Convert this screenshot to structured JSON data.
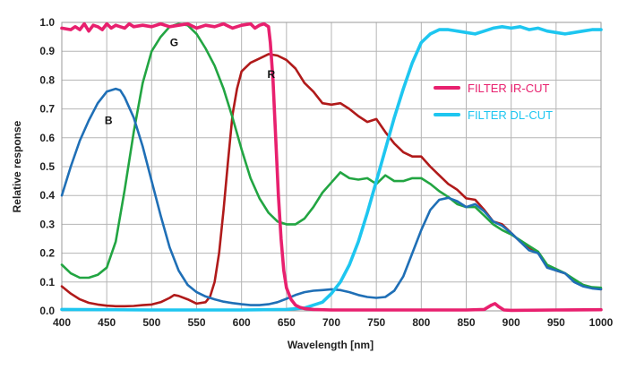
{
  "chart_data": {
    "type": "line",
    "xlabel": "Wavelength [nm]",
    "ylabel": "Relative response",
    "xlim": [
      400,
      1000
    ],
    "ylim": [
      0,
      1.0
    ],
    "x_ticks": [
      "400",
      "450",
      "500",
      "550",
      "600",
      "650",
      "700",
      "750",
      "800",
      "850",
      "900",
      "950",
      "1000"
    ],
    "y_ticks": [
      "0.0",
      "0.1",
      "0.2",
      "0.3",
      "0.4",
      "0.5",
      "0.6",
      "0.7",
      "0.8",
      "0.9",
      "1.0"
    ],
    "grid": true,
    "legend_position": "top-right",
    "series": [
      {
        "name": "FILTER IR-CUT",
        "color": "#e8206e",
        "legend": true,
        "points": [
          [
            400,
            0.98
          ],
          [
            410,
            0.975
          ],
          [
            415,
            0.985
          ],
          [
            420,
            0.975
          ],
          [
            425,
            0.995
          ],
          [
            430,
            0.97
          ],
          [
            435,
            0.99
          ],
          [
            440,
            0.985
          ],
          [
            445,
            0.975
          ],
          [
            450,
            0.995
          ],
          [
            455,
            0.98
          ],
          [
            460,
            0.99
          ],
          [
            465,
            0.985
          ],
          [
            470,
            0.98
          ],
          [
            475,
            0.995
          ],
          [
            480,
            0.985
          ],
          [
            490,
            0.99
          ],
          [
            500,
            0.985
          ],
          [
            510,
            0.995
          ],
          [
            520,
            0.985
          ],
          [
            530,
            0.99
          ],
          [
            540,
            0.995
          ],
          [
            550,
            0.98
          ],
          [
            560,
            0.99
          ],
          [
            570,
            0.985
          ],
          [
            580,
            0.995
          ],
          [
            590,
            0.98
          ],
          [
            600,
            0.99
          ],
          [
            610,
            0.995
          ],
          [
            615,
            0.98
          ],
          [
            620,
            0.99
          ],
          [
            625,
            0.995
          ],
          [
            630,
            0.985
          ],
          [
            632,
            0.93
          ],
          [
            635,
            0.8
          ],
          [
            638,
            0.6
          ],
          [
            641,
            0.4
          ],
          [
            644,
            0.25
          ],
          [
            647,
            0.14
          ],
          [
            650,
            0.08
          ],
          [
            655,
            0.04
          ],
          [
            660,
            0.02
          ],
          [
            665,
            0.012
          ],
          [
            670,
            0.008
          ],
          [
            680,
            0.005
          ],
          [
            700,
            0.003
          ],
          [
            750,
            0.003
          ],
          [
            800,
            0.003
          ],
          [
            850,
            0.003
          ],
          [
            870,
            0.005
          ],
          [
            878,
            0.02
          ],
          [
            882,
            0.025
          ],
          [
            886,
            0.015
          ],
          [
            892,
            0.003
          ],
          [
            900,
            0.002
          ],
          [
            950,
            0.003
          ],
          [
            1000,
            0.004
          ]
        ]
      },
      {
        "name": "FILTER DL-CUT",
        "color": "#1ec6f0",
        "legend": true,
        "points": [
          [
            400,
            0.005
          ],
          [
            450,
            0.004
          ],
          [
            500,
            0.003
          ],
          [
            550,
            0.003
          ],
          [
            600,
            0.003
          ],
          [
            650,
            0.005
          ],
          [
            670,
            0.01
          ],
          [
            690,
            0.03
          ],
          [
            700,
            0.06
          ],
          [
            710,
            0.1
          ],
          [
            720,
            0.16
          ],
          [
            730,
            0.24
          ],
          [
            740,
            0.34
          ],
          [
            750,
            0.45
          ],
          [
            760,
            0.56
          ],
          [
            770,
            0.67
          ],
          [
            780,
            0.77
          ],
          [
            790,
            0.86
          ],
          [
            800,
            0.93
          ],
          [
            810,
            0.96
          ],
          [
            820,
            0.975
          ],
          [
            830,
            0.975
          ],
          [
            840,
            0.97
          ],
          [
            850,
            0.965
          ],
          [
            860,
            0.96
          ],
          [
            870,
            0.97
          ],
          [
            880,
            0.98
          ],
          [
            890,
            0.985
          ],
          [
            900,
            0.98
          ],
          [
            910,
            0.985
          ],
          [
            920,
            0.975
          ],
          [
            930,
            0.98
          ],
          [
            940,
            0.97
          ],
          [
            950,
            0.965
          ],
          [
            960,
            0.96
          ],
          [
            970,
            0.965
          ],
          [
            980,
            0.97
          ],
          [
            990,
            0.975
          ],
          [
            1000,
            0.975
          ]
        ]
      },
      {
        "name": "B",
        "color": "#1f6fb6",
        "legend": false,
        "points": [
          [
            400,
            0.4
          ],
          [
            410,
            0.5
          ],
          [
            420,
            0.59
          ],
          [
            430,
            0.66
          ],
          [
            440,
            0.72
          ],
          [
            450,
            0.76
          ],
          [
            460,
            0.77
          ],
          [
            465,
            0.765
          ],
          [
            470,
            0.74
          ],
          [
            480,
            0.67
          ],
          [
            490,
            0.57
          ],
          [
            500,
            0.45
          ],
          [
            510,
            0.33
          ],
          [
            520,
            0.22
          ],
          [
            530,
            0.14
          ],
          [
            540,
            0.09
          ],
          [
            550,
            0.065
          ],
          [
            560,
            0.05
          ],
          [
            570,
            0.04
          ],
          [
            580,
            0.032
          ],
          [
            590,
            0.027
          ],
          [
            600,
            0.023
          ],
          [
            610,
            0.02
          ],
          [
            620,
            0.02
          ],
          [
            630,
            0.023
          ],
          [
            640,
            0.03
          ],
          [
            650,
            0.042
          ],
          [
            660,
            0.055
          ],
          [
            670,
            0.065
          ],
          [
            680,
            0.07
          ],
          [
            690,
            0.072
          ],
          [
            700,
            0.075
          ],
          [
            710,
            0.072
          ],
          [
            720,
            0.065
          ],
          [
            730,
            0.055
          ],
          [
            740,
            0.048
          ],
          [
            750,
            0.045
          ],
          [
            760,
            0.048
          ],
          [
            770,
            0.07
          ],
          [
            780,
            0.12
          ],
          [
            790,
            0.2
          ],
          [
            800,
            0.28
          ],
          [
            810,
            0.35
          ],
          [
            820,
            0.385
          ],
          [
            830,
            0.392
          ],
          [
            840,
            0.38
          ],
          [
            850,
            0.36
          ],
          [
            860,
            0.37
          ],
          [
            870,
            0.345
          ],
          [
            880,
            0.31
          ],
          [
            890,
            0.295
          ],
          [
            900,
            0.27
          ],
          [
            910,
            0.24
          ],
          [
            920,
            0.21
          ],
          [
            930,
            0.2
          ],
          [
            940,
            0.15
          ],
          [
            950,
            0.14
          ],
          [
            960,
            0.13
          ],
          [
            970,
            0.1
          ],
          [
            980,
            0.085
          ],
          [
            990,
            0.078
          ],
          [
            1000,
            0.075
          ]
        ]
      },
      {
        "name": "G",
        "color": "#22a542",
        "legend": false,
        "points": [
          [
            400,
            0.16
          ],
          [
            410,
            0.13
          ],
          [
            420,
            0.115
          ],
          [
            430,
            0.115
          ],
          [
            440,
            0.125
          ],
          [
            450,
            0.15
          ],
          [
            460,
            0.24
          ],
          [
            470,
            0.42
          ],
          [
            480,
            0.62
          ],
          [
            490,
            0.79
          ],
          [
            500,
            0.9
          ],
          [
            510,
            0.95
          ],
          [
            520,
            0.985
          ],
          [
            530,
            0.995
          ],
          [
            540,
            0.99
          ],
          [
            550,
            0.96
          ],
          [
            560,
            0.91
          ],
          [
            570,
            0.85
          ],
          [
            580,
            0.77
          ],
          [
            590,
            0.67
          ],
          [
            600,
            0.56
          ],
          [
            610,
            0.46
          ],
          [
            620,
            0.39
          ],
          [
            630,
            0.34
          ],
          [
            640,
            0.31
          ],
          [
            650,
            0.3
          ],
          [
            660,
            0.3
          ],
          [
            670,
            0.32
          ],
          [
            680,
            0.36
          ],
          [
            690,
            0.41
          ],
          [
            700,
            0.445
          ],
          [
            710,
            0.48
          ],
          [
            720,
            0.46
          ],
          [
            730,
            0.455
          ],
          [
            740,
            0.46
          ],
          [
            750,
            0.44
          ],
          [
            760,
            0.47
          ],
          [
            770,
            0.45
          ],
          [
            780,
            0.45
          ],
          [
            790,
            0.46
          ],
          [
            800,
            0.46
          ],
          [
            810,
            0.44
          ],
          [
            820,
            0.415
          ],
          [
            830,
            0.395
          ],
          [
            840,
            0.37
          ],
          [
            850,
            0.36
          ],
          [
            860,
            0.36
          ],
          [
            870,
            0.33
          ],
          [
            880,
            0.3
          ],
          [
            890,
            0.28
          ],
          [
            900,
            0.265
          ],
          [
            910,
            0.245
          ],
          [
            920,
            0.225
          ],
          [
            930,
            0.205
          ],
          [
            940,
            0.16
          ],
          [
            950,
            0.145
          ],
          [
            960,
            0.13
          ],
          [
            970,
            0.11
          ],
          [
            980,
            0.09
          ],
          [
            990,
            0.082
          ],
          [
            1000,
            0.08
          ]
        ]
      },
      {
        "name": "R",
        "color": "#b01a1a",
        "legend": false,
        "points": [
          [
            400,
            0.085
          ],
          [
            410,
            0.06
          ],
          [
            420,
            0.04
          ],
          [
            430,
            0.028
          ],
          [
            440,
            0.022
          ],
          [
            450,
            0.018
          ],
          [
            460,
            0.016
          ],
          [
            470,
            0.016
          ],
          [
            480,
            0.017
          ],
          [
            490,
            0.02
          ],
          [
            500,
            0.022
          ],
          [
            510,
            0.03
          ],
          [
            520,
            0.045
          ],
          [
            525,
            0.055
          ],
          [
            530,
            0.052
          ],
          [
            540,
            0.04
          ],
          [
            550,
            0.025
          ],
          [
            560,
            0.03
          ],
          [
            565,
            0.05
          ],
          [
            570,
            0.1
          ],
          [
            575,
            0.2
          ],
          [
            580,
            0.35
          ],
          [
            585,
            0.52
          ],
          [
            590,
            0.68
          ],
          [
            595,
            0.77
          ],
          [
            600,
            0.83
          ],
          [
            610,
            0.86
          ],
          [
            620,
            0.875
          ],
          [
            630,
            0.89
          ],
          [
            640,
            0.885
          ],
          [
            650,
            0.87
          ],
          [
            660,
            0.84
          ],
          [
            670,
            0.79
          ],
          [
            680,
            0.76
          ],
          [
            690,
            0.72
          ],
          [
            700,
            0.715
          ],
          [
            710,
            0.72
          ],
          [
            720,
            0.7
          ],
          [
            730,
            0.675
          ],
          [
            740,
            0.655
          ],
          [
            750,
            0.665
          ],
          [
            760,
            0.62
          ],
          [
            770,
            0.58
          ],
          [
            780,
            0.55
          ],
          [
            790,
            0.535
          ],
          [
            800,
            0.535
          ],
          [
            810,
            0.5
          ],
          [
            820,
            0.47
          ],
          [
            830,
            0.44
          ],
          [
            840,
            0.42
          ],
          [
            850,
            0.39
          ],
          [
            860,
            0.385
          ],
          [
            870,
            0.35
          ],
          [
            880,
            0.31
          ],
          [
            890,
            0.3
          ],
          [
            900,
            0.27
          ],
          [
            910,
            0.24
          ],
          [
            920,
            0.22
          ],
          [
            930,
            0.2
          ],
          [
            940,
            0.155
          ],
          [
            950,
            0.14
          ],
          [
            960,
            0.13
          ],
          [
            970,
            0.105
          ],
          [
            980,
            0.09
          ],
          [
            990,
            0.08
          ],
          [
            1000,
            0.075
          ]
        ]
      }
    ],
    "curve_labels": [
      {
        "text": "G",
        "x": 525,
        "y": 0.93
      },
      {
        "text": "R",
        "x": 633,
        "y": 0.82
      },
      {
        "text": "B",
        "x": 452,
        "y": 0.66
      }
    ]
  }
}
